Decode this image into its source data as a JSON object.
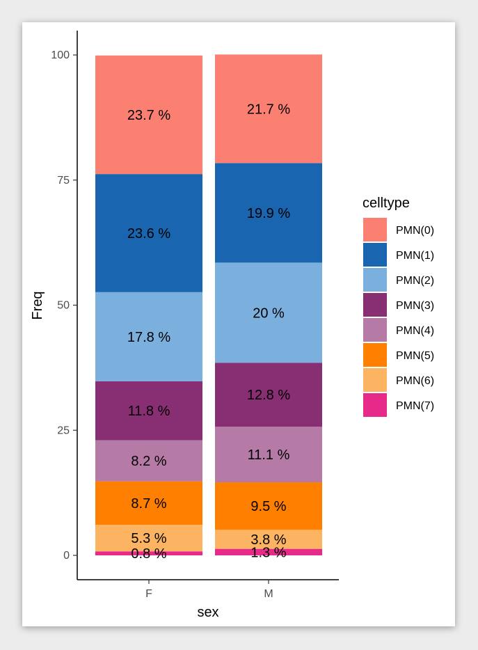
{
  "chart_data": {
    "type": "bar",
    "stacked": true,
    "title": "",
    "xlabel": "sex",
    "ylabel": "Freq",
    "categories": [
      "F",
      "M"
    ],
    "ylim": [
      0,
      100
    ],
    "yticks": [
      0,
      25,
      50,
      75,
      100
    ],
    "legend_title": "celltype",
    "legend_position": "right",
    "series": [
      {
        "name": "PMN(7)",
        "color": "#E7298A",
        "values": [
          0.8,
          1.3
        ],
        "labels": [
          "0.8 %",
          "1.3 %"
        ]
      },
      {
        "name": "PMN(6)",
        "color": "#FDB462",
        "values": [
          5.3,
          3.8
        ],
        "labels": [
          "5.3 %",
          "3.8 %"
        ]
      },
      {
        "name": "PMN(5)",
        "color": "#FF7F00",
        "values": [
          8.7,
          9.5
        ],
        "labels": [
          "8.7 %",
          "9.5 %"
        ]
      },
      {
        "name": "PMN(4)",
        "color": "#B57BA6",
        "values": [
          8.2,
          11.1
        ],
        "labels": [
          "8.2 %",
          "11.1 %"
        ]
      },
      {
        "name": "PMN(3)",
        "color": "#882E72",
        "values": [
          11.8,
          12.8
        ],
        "labels": [
          "11.8 %",
          "12.8 %"
        ]
      },
      {
        "name": "PMN(2)",
        "color": "#7BAFDE",
        "values": [
          17.8,
          20
        ],
        "labels": [
          "17.8 %",
          "20 %"
        ]
      },
      {
        "name": "PMN(1)",
        "color": "#1965B0",
        "values": [
          23.6,
          19.9
        ],
        "labels": [
          "23.6 %",
          "19.9 %"
        ]
      },
      {
        "name": "PMN(0)",
        "color": "#FB8072",
        "values": [
          23.7,
          21.7
        ],
        "labels": [
          "23.7 %",
          "21.7 %"
        ]
      }
    ],
    "legend_order": [
      "PMN(0)",
      "PMN(1)",
      "PMN(2)",
      "PMN(3)",
      "PMN(4)",
      "PMN(5)",
      "PMN(6)",
      "PMN(7)"
    ]
  }
}
